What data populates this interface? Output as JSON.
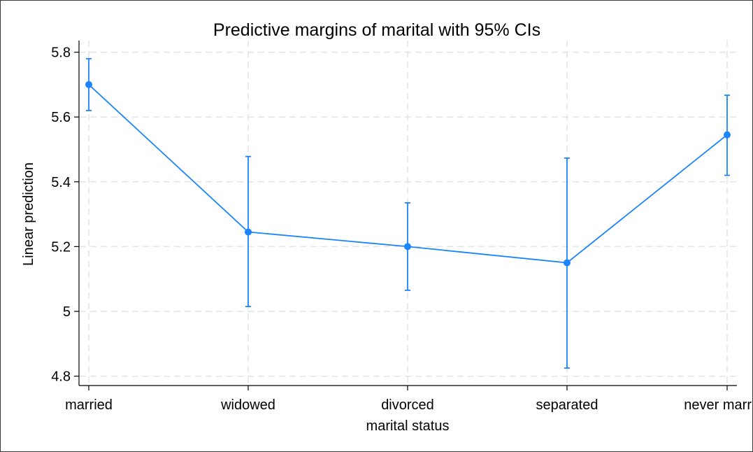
{
  "chart_data": {
    "type": "line",
    "title": "Predictive margins of marital with 95% CIs",
    "xlabel": "marital status",
    "ylabel": "Linear prediction",
    "categories": [
      "married",
      "widowed",
      "divorced",
      "separated",
      "never married"
    ],
    "series": [
      {
        "values": [
          5.7,
          5.245,
          5.2,
          5.15,
          5.545
        ],
        "ci_lower": [
          5.62,
          5.015,
          5.065,
          4.825,
          5.42
        ],
        "ci_upper": [
          5.78,
          5.478,
          5.335,
          5.473,
          5.667
        ]
      }
    ],
    "ylim": [
      4.77,
      5.83
    ],
    "yticks": [
      4.8,
      5,
      5.2,
      5.4,
      5.6,
      5.8
    ],
    "ytick_labels": [
      "4.8",
      "5",
      "5.2",
      "5.4",
      "5.6",
      "5.8"
    ],
    "grid": true,
    "colors": {
      "series": "#1a85ff",
      "grid": "#e4e4e4",
      "axis": "#000000"
    }
  }
}
